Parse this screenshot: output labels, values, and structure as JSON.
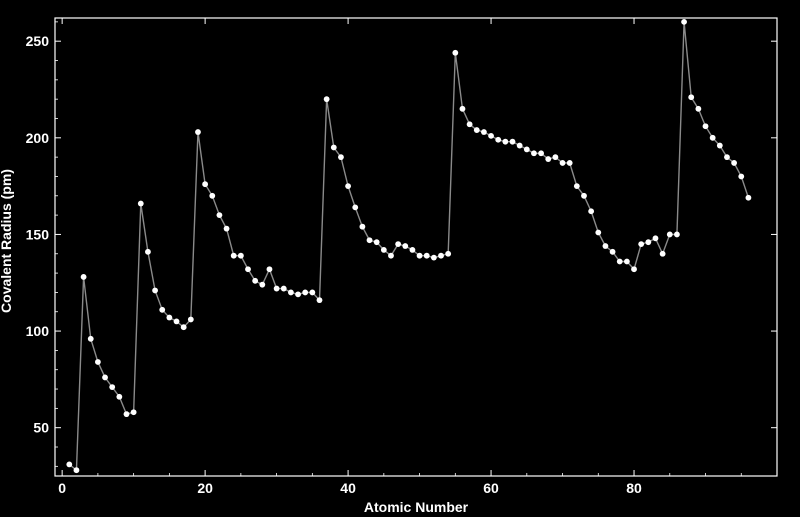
{
  "chart_data": {
    "type": "line",
    "title": "",
    "xlabel": "Atomic Number",
    "ylabel": "Covalent Radius (pm)",
    "xlim": [
      -1,
      100
    ],
    "ylim": [
      25,
      262
    ],
    "x_ticks": [
      0,
      20,
      40,
      60,
      80
    ],
    "y_ticks": [
      50,
      100,
      150,
      200,
      250
    ],
    "grid": false,
    "markers": true,
    "colors": {
      "background": "#000000",
      "line": "#8a8a8a",
      "marker": "#ffffff",
      "axis": "#ffffff"
    },
    "series": [
      {
        "x": [
          1,
          2,
          3,
          4,
          5,
          6,
          7,
          8,
          9,
          10,
          11,
          12,
          13,
          14,
          15,
          16,
          17,
          18,
          19,
          20,
          21,
          22,
          23,
          24,
          25,
          26,
          27,
          28,
          29,
          30,
          31,
          32,
          33,
          34,
          35,
          36,
          37,
          38,
          39,
          40,
          41,
          42,
          43,
          44,
          45,
          46,
          47,
          48,
          49,
          50,
          51,
          52,
          53,
          54,
          55,
          56,
          57,
          58,
          59,
          60,
          61,
          62,
          63,
          64,
          65,
          66,
          67,
          68,
          69,
          70,
          71,
          72,
          73,
          74,
          75,
          76,
          77,
          78,
          79,
          80,
          81,
          82,
          83,
          84,
          85,
          86,
          87,
          88,
          89,
          90,
          91,
          92,
          93,
          94,
          95,
          96
        ],
        "y": [
          31,
          28,
          128,
          96,
          84,
          76,
          71,
          66,
          57,
          58,
          166,
          141,
          121,
          111,
          107,
          105,
          102,
          106,
          203,
          176,
          170,
          160,
          153,
          139,
          139,
          132,
          126,
          124,
          132,
          122,
          122,
          120,
          119,
          120,
          120,
          116,
          220,
          195,
          190,
          175,
          164,
          154,
          147,
          146,
          142,
          139,
          145,
          144,
          142,
          139,
          139,
          138,
          139,
          140,
          244,
          215,
          207,
          204,
          203,
          201,
          199,
          198,
          198,
          196,
          194,
          192,
          192,
          189,
          190,
          187,
          187,
          175,
          170,
          162,
          151,
          144,
          141,
          136,
          136,
          132,
          145,
          146,
          148,
          140,
          150,
          150,
          260,
          221,
          215,
          206,
          200,
          196,
          190,
          187,
          180,
          169
        ]
      }
    ]
  }
}
